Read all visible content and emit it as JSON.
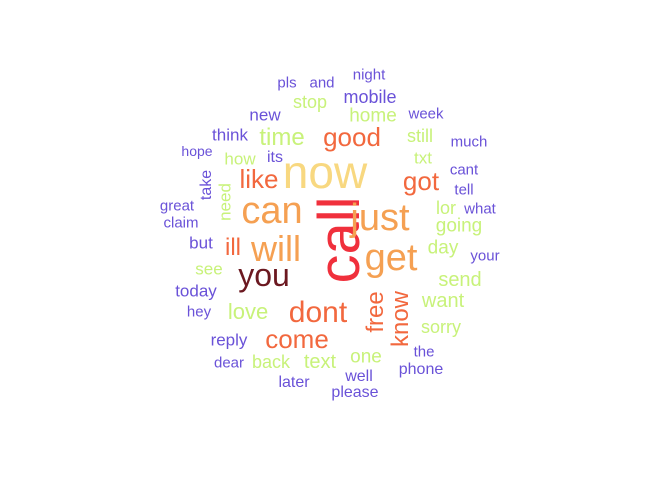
{
  "wordcloud": {
    "colors": {
      "red": "#f0303c",
      "dark_red": "#6b1820",
      "coral": "#f2683e",
      "orange": "#f5a052",
      "gold": "#f8d880",
      "lime": "#c8f27a",
      "purple": "#6a52d8"
    },
    "words": [
      {
        "text": "call",
        "color": "red"
      },
      {
        "text": "now",
        "color": "gold"
      },
      {
        "text": "can",
        "color": "orange"
      },
      {
        "text": "just",
        "color": "orange"
      },
      {
        "text": "will",
        "color": "orange"
      },
      {
        "text": "get",
        "color": "orange"
      },
      {
        "text": "you",
        "color": "dark_red"
      },
      {
        "text": "dont",
        "color": "coral"
      },
      {
        "text": "free",
        "color": "coral"
      },
      {
        "text": "know",
        "color": "coral"
      },
      {
        "text": "good",
        "color": "coral"
      },
      {
        "text": "got",
        "color": "coral"
      },
      {
        "text": "like",
        "color": "coral"
      },
      {
        "text": "come",
        "color": "coral"
      },
      {
        "text": "ill",
        "color": "coral"
      },
      {
        "text": "time",
        "color": "lime"
      },
      {
        "text": "love",
        "color": "lime"
      },
      {
        "text": "want",
        "color": "lime"
      },
      {
        "text": "send",
        "color": "lime"
      },
      {
        "text": "text",
        "color": "lime"
      },
      {
        "text": "one",
        "color": "lime"
      },
      {
        "text": "home",
        "color": "lime"
      },
      {
        "text": "stop",
        "color": "lime"
      },
      {
        "text": "going",
        "color": "lime"
      },
      {
        "text": "day",
        "color": "lime"
      },
      {
        "text": "sorry",
        "color": "lime"
      },
      {
        "text": "back",
        "color": "lime"
      },
      {
        "text": "lor",
        "color": "lime"
      },
      {
        "text": "still",
        "color": "lime"
      },
      {
        "text": "txt",
        "color": "lime"
      },
      {
        "text": "see",
        "color": "lime"
      },
      {
        "text": "how",
        "color": "lime"
      },
      {
        "text": "need",
        "color": "lime"
      },
      {
        "text": "mobile",
        "color": "purple"
      },
      {
        "text": "new",
        "color": "purple"
      },
      {
        "text": "think",
        "color": "purple"
      },
      {
        "text": "its",
        "color": "purple"
      },
      {
        "text": "take",
        "color": "purple"
      },
      {
        "text": "but",
        "color": "purple"
      },
      {
        "text": "today",
        "color": "purple"
      },
      {
        "text": "reply",
        "color": "purple"
      },
      {
        "text": "hey",
        "color": "purple"
      },
      {
        "text": "dear",
        "color": "purple"
      },
      {
        "text": "later",
        "color": "purple"
      },
      {
        "text": "please",
        "color": "purple"
      },
      {
        "text": "well",
        "color": "purple"
      },
      {
        "text": "phone",
        "color": "purple"
      },
      {
        "text": "the",
        "color": "purple"
      },
      {
        "text": "your",
        "color": "purple"
      },
      {
        "text": "what",
        "color": "purple"
      },
      {
        "text": "tell",
        "color": "purple"
      },
      {
        "text": "cant",
        "color": "purple"
      },
      {
        "text": "much",
        "color": "purple"
      },
      {
        "text": "week",
        "color": "purple"
      },
      {
        "text": "night",
        "color": "purple"
      },
      {
        "text": "and",
        "color": "purple"
      },
      {
        "text": "pls",
        "color": "purple"
      },
      {
        "text": "hope",
        "color": "purple"
      },
      {
        "text": "great",
        "color": "purple"
      },
      {
        "text": "claim",
        "color": "purple"
      }
    ]
  }
}
